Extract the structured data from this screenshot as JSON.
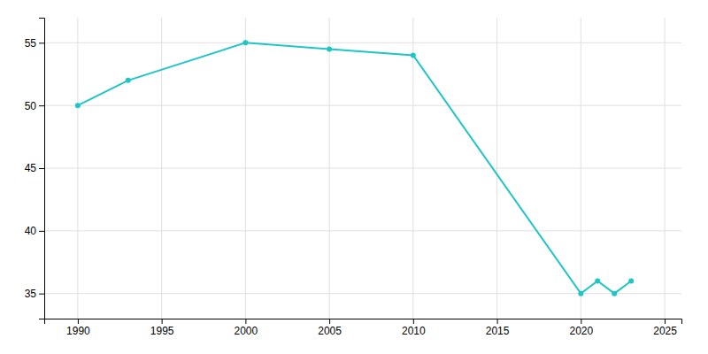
{
  "chart_data": {
    "type": "line",
    "x": [
      1990,
      1993,
      2000,
      2005,
      2010,
      2020,
      2021,
      2022,
      2023
    ],
    "values": [
      50,
      52,
      55,
      54.5,
      54,
      35,
      36,
      35,
      36
    ],
    "color": "#20c5c5",
    "marker": "circle",
    "xlim": [
      1988,
      2026
    ],
    "ylim": [
      33,
      57
    ],
    "xticks": [
      1990,
      1995,
      2000,
      2005,
      2010,
      2015,
      2020,
      2025
    ],
    "yticks": [
      35,
      40,
      45,
      50,
      55
    ],
    "grid": true
  }
}
